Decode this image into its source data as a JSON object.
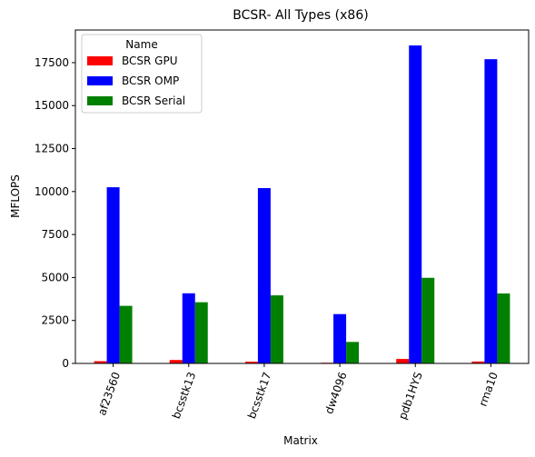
{
  "chart_data": {
    "type": "bar",
    "title": "BCSR- All Types (x86)",
    "xlabel": "Matrix",
    "ylabel": "MFLOPS",
    "categories": [
      "af23560",
      "bcsstk13",
      "bcsstk17",
      "dw4096",
      "pdb1HYS",
      "rma10"
    ],
    "series": [
      {
        "name": "BCSR GPU",
        "color": "#ff0000",
        "values": [
          130,
          200,
          100,
          40,
          260,
          110
        ]
      },
      {
        "name": "BCSR OMP",
        "color": "#0000ff",
        "values": [
          10250,
          4080,
          10200,
          2870,
          18500,
          17700
        ]
      },
      {
        "name": "BCSR Serial",
        "color": "#008000",
        "values": [
          3350,
          3560,
          3960,
          1250,
          4980,
          4070
        ]
      }
    ],
    "ylim": [
      0,
      19400
    ],
    "yticks": [
      0,
      2500,
      5000,
      7500,
      10000,
      12500,
      15000,
      17500
    ],
    "ytick_labels": [
      "0",
      "2500",
      "5000",
      "7500",
      "10000",
      "12500",
      "15000",
      "17500"
    ],
    "legend": {
      "title": "Name",
      "placement": "top-left"
    },
    "grid": false
  }
}
